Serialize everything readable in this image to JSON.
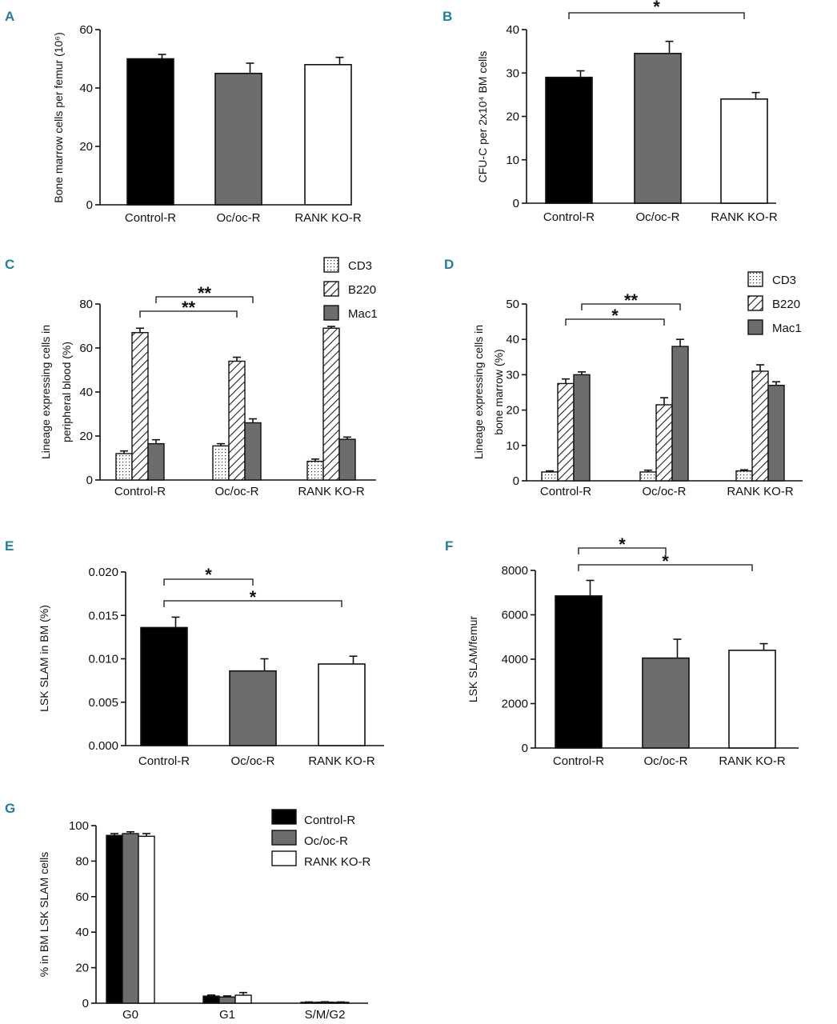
{
  "colors": {
    "black": "#000000",
    "gray": "#6d6d6d",
    "white": "#ffffff",
    "panel_letter": "#1f7fa0"
  },
  "chart_data": [
    {
      "id": "A",
      "type": "bar",
      "panel_label": "A",
      "categories": [
        "Control-R",
        "Oc/oc-R",
        "RANK KO-R"
      ],
      "values": [
        50,
        45,
        48
      ],
      "errors": [
        1.5,
        3.5,
        2.5
      ],
      "fills": [
        "black",
        "gray",
        "white"
      ],
      "ylabel": "Bone marrow cells per femur (10⁶)",
      "ylim": [
        0,
        60
      ],
      "yticks": [
        0,
        20,
        40,
        60
      ],
      "ytick_labels": [
        "0",
        "20",
        "40",
        "60"
      ],
      "significance": []
    },
    {
      "id": "B",
      "type": "bar",
      "panel_label": "B",
      "categories": [
        "Control-R",
        "Oc/oc-R",
        "RANK KO-R"
      ],
      "values": [
        29,
        34.5,
        24
      ],
      "errors": [
        1.5,
        2.8,
        1.5
      ],
      "fills": [
        "black",
        "gray",
        "white"
      ],
      "ylabel": "CFU-C per 2x10⁴ BM cells",
      "ylim": [
        0,
        40
      ],
      "yticks": [
        0,
        10,
        20,
        30,
        40
      ],
      "ytick_labels": [
        "0",
        "10",
        "20",
        "30",
        "40"
      ],
      "significance": [
        {
          "from": 0,
          "to": 2,
          "label": "*"
        }
      ]
    },
    {
      "id": "C",
      "type": "bar",
      "panel_label": "C",
      "categories": [
        "Control-R",
        "Oc/oc-R",
        "RANK KO-R"
      ],
      "series": [
        {
          "name": "CD3",
          "values": [
            12,
            15.5,
            8.5
          ],
          "errors": [
            1.2,
            1,
            1
          ],
          "fill": "dots"
        },
        {
          "name": "B220",
          "values": [
            67,
            54,
            69
          ],
          "errors": [
            2,
            1.8,
            0.8
          ],
          "fill": "hatch"
        },
        {
          "name": "Mac1",
          "values": [
            16.5,
            26,
            18.5
          ],
          "errors": [
            1.8,
            1.8,
            1
          ]
        }
      ],
      "ylabel": "Lineage expressing cells in peripheral blood (%)",
      "ylabel_lines": [
        "Lineage expressing cells in",
        "peripheral blood (%)"
      ],
      "ylim": [
        0,
        80
      ],
      "yticks": [
        0,
        20,
        40,
        60,
        80
      ],
      "ytick_labels": [
        "0",
        "20",
        "40",
        "60",
        "80"
      ],
      "significance": [
        {
          "from": [
            0,
            1
          ],
          "to": [
            1,
            1
          ],
          "label": "**"
        },
        {
          "from": [
            0,
            2
          ],
          "to": [
            1,
            2
          ],
          "label": "**"
        }
      ]
    },
    {
      "id": "D",
      "type": "bar",
      "panel_label": "D",
      "categories": [
        "Control-R",
        "Oc/oc-R",
        "RANK KO-R"
      ],
      "series": [
        {
          "name": "CD3",
          "values": [
            2.5,
            2.5,
            2.8
          ],
          "errors": [
            0.3,
            0.5,
            0.3
          ],
          "fill": "dots"
        },
        {
          "name": "B220",
          "values": [
            27.5,
            21.5,
            31
          ],
          "errors": [
            1.3,
            2,
            1.8
          ],
          "fill": "hatch"
        },
        {
          "name": "Mac1",
          "values": [
            30,
            38,
            27
          ],
          "errors": [
            0.8,
            2,
            1
          ]
        }
      ],
      "ylabel": "Lineage expressing cells in bone marrow (%)",
      "ylabel_lines": [
        "Lineage expressing cells in",
        "bone marrow (%)"
      ],
      "ylim": [
        0,
        50
      ],
      "yticks": [
        0,
        10,
        20,
        30,
        40,
        50
      ],
      "ytick_labels": [
        "0",
        "10",
        "20",
        "30",
        "40",
        "50"
      ],
      "significance": [
        {
          "from": [
            0,
            1
          ],
          "to": [
            1,
            1
          ],
          "label": "*"
        },
        {
          "from": [
            0,
            2
          ],
          "to": [
            1,
            2
          ],
          "label": "**"
        }
      ]
    },
    {
      "id": "E",
      "type": "bar",
      "panel_label": "E",
      "categories": [
        "Control-R",
        "Oc/oc-R",
        "RANK KO-R"
      ],
      "values": [
        0.0136,
        0.0086,
        0.0094
      ],
      "errors": [
        0.0012,
        0.0014,
        0.0009
      ],
      "fills": [
        "black",
        "gray",
        "white"
      ],
      "ylabel": "LSK SLAM in BM (%)",
      "ylim": [
        0,
        0.02
      ],
      "yticks": [
        0,
        0.005,
        0.01,
        0.015,
        0.02
      ],
      "ytick_labels": [
        "0.000",
        "0.005",
        "0.010",
        "0.015",
        "0.020"
      ],
      "significance": [
        {
          "from": 0,
          "to": 1,
          "label": "*"
        },
        {
          "from": 0,
          "to": 2,
          "label": "*"
        }
      ]
    },
    {
      "id": "F",
      "type": "bar",
      "panel_label": "F",
      "categories": [
        "Control-R",
        "Oc/oc-R",
        "RANK KO-R"
      ],
      "values": [
        6850,
        4050,
        4400
      ],
      "errors": [
        700,
        850,
        300
      ],
      "fills": [
        "black",
        "gray",
        "white"
      ],
      "ylabel": "LSK SLAM/femur",
      "ylim": [
        0,
        8000
      ],
      "yticks": [
        0,
        2000,
        4000,
        6000,
        8000
      ],
      "ytick_labels": [
        "0",
        "2000",
        "4000",
        "6000",
        "8000"
      ],
      "significance": [
        {
          "from": 0,
          "to": 1,
          "label": "*"
        },
        {
          "from": 0,
          "to": 2,
          "label": "*"
        }
      ]
    },
    {
      "id": "G",
      "type": "bar",
      "panel_label": "G",
      "categories": [
        "G0",
        "G1",
        "S/M/G2"
      ],
      "series": [
        {
          "name": "Control-R",
          "values": [
            94.5,
            4,
            0.5
          ],
          "errors": [
            1,
            0.6,
            0.2
          ],
          "fill": "black"
        },
        {
          "name": "Oc/oc-R",
          "values": [
            95.5,
            3.5,
            0.6
          ],
          "errors": [
            1,
            0.6,
            0.2
          ],
          "fill": "gray"
        },
        {
          "name": "RANK KO-R",
          "values": [
            94,
            4.5,
            0.5
          ],
          "errors": [
            1.5,
            1.5,
            0.2
          ],
          "fill": "white"
        }
      ],
      "ylabel": "% in BM LSK SLAM cells",
      "ylim": [
        0,
        100
      ],
      "yticks": [
        0,
        20,
        40,
        60,
        80,
        100
      ],
      "ytick_labels": [
        "0",
        "20",
        "40",
        "60",
        "80",
        "100"
      ],
      "significance": []
    }
  ]
}
